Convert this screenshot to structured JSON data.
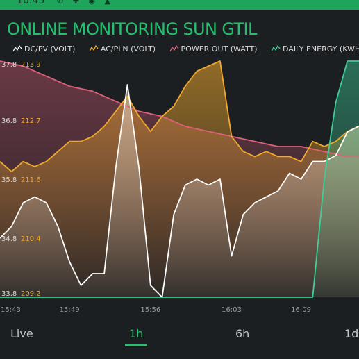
{
  "status_bar": {
    "time": "16:43",
    "icons_text": "✆ ✚ ◉ ▲"
  },
  "app_title": "ONLINE MONITORING SUN GTIL",
  "colors": {
    "accent": "#23c16e",
    "dc_pv": "#ffffff",
    "ac_pln": "#f0a92c",
    "power_out": "#e0607a",
    "daily_energy": "#3dcf9a",
    "tick_left": "#d8d8d8",
    "tick_right": "#f0a92c"
  },
  "legend": [
    {
      "name": "dc-pv",
      "label": "DC/PV (VOLT)",
      "color": "#ffffff"
    },
    {
      "name": "ac-pln",
      "label": "AC/PLN (VOLT)",
      "color": "#f0a92c"
    },
    {
      "name": "power-out",
      "label": "POWER OUT  (WATT)",
      "color": "#e0607a"
    },
    {
      "name": "daily-energy",
      "label": "DAILY ENERGY (KWH)",
      "color": "#3dcf9a"
    }
  ],
  "tabs": [
    {
      "name": "live",
      "label": "Live",
      "active": false
    },
    {
      "name": "1h",
      "label": "1h",
      "active": true
    },
    {
      "name": "6h",
      "label": "6h",
      "active": false
    },
    {
      "name": "1d",
      "label": "1d",
      "active": false
    }
  ],
  "chart_data": {
    "type": "line",
    "title": "",
    "xlabel": "",
    "ylabel": "",
    "x_ticks": [
      "15:43",
      "15:49",
      "15:56",
      "16:03",
      "16:09"
    ],
    "x_range": [
      "15:43",
      "16:14"
    ],
    "y_left_ticks": [
      "37.8",
      "36.8",
      "35.8",
      "34.8",
      "33.8"
    ],
    "y_left_range": [
      33.8,
      37.8
    ],
    "y_right_ticks": [
      "213.9",
      "212.7",
      "211.6",
      "210.4",
      "209.2"
    ],
    "y_right_range": [
      209.2,
      213.9
    ],
    "grid": false,
    "legend_position": "top",
    "series": [
      {
        "name": "DC/PV (VOLT)",
        "color": "#ffffff",
        "x": [
          "15:43",
          "15:44",
          "15:45",
          "15:46",
          "15:47",
          "15:48",
          "15:49",
          "15:50",
          "15:51",
          "15:52",
          "15:53",
          "15:54",
          "15:55",
          "15:56",
          "15:57",
          "15:58",
          "15:59",
          "16:00",
          "16:01",
          "16:02",
          "16:03",
          "16:04",
          "16:05",
          "16:06",
          "16:07",
          "16:08",
          "16:09",
          "16:10",
          "16:11",
          "16:12",
          "16:13",
          "16:14"
        ],
        "values": [
          34.8,
          35.0,
          35.4,
          35.5,
          35.4,
          35.0,
          34.4,
          34.0,
          34.2,
          34.2,
          36.0,
          37.4,
          36.0,
          34.0,
          33.8,
          35.2,
          35.7,
          35.8,
          35.7,
          35.8,
          34.5,
          35.2,
          35.4,
          35.5,
          35.6,
          35.9,
          35.8,
          36.1,
          36.1,
          36.2,
          36.6,
          36.7
        ]
      },
      {
        "name": "AC/PLN (VOLT)",
        "color": "#f0a92c",
        "x": [
          "15:43",
          "15:44",
          "15:45",
          "15:46",
          "15:47",
          "15:48",
          "15:49",
          "15:50",
          "15:51",
          "15:52",
          "15:53",
          "15:54",
          "15:55",
          "15:56",
          "15:57",
          "15:58",
          "15:59",
          "16:00",
          "16:01",
          "16:02",
          "16:03",
          "16:04",
          "16:05",
          "16:06",
          "16:07",
          "16:08",
          "16:09",
          "16:10",
          "16:11",
          "16:12",
          "16:13",
          "16:14"
        ],
        "values": [
          211.9,
          211.7,
          211.9,
          211.8,
          211.9,
          212.1,
          212.3,
          212.3,
          212.4,
          212.6,
          212.9,
          213.2,
          212.8,
          212.5,
          212.8,
          213.0,
          213.4,
          213.7,
          213.8,
          213.9,
          212.4,
          212.1,
          212.0,
          212.1,
          212.0,
          212.0,
          211.9,
          212.3,
          212.2,
          212.3,
          212.5,
          212.6
        ]
      },
      {
        "name": "POWER OUT  (WATT)",
        "color": "#e0607a",
        "x": [
          "15:43",
          "15:45",
          "15:47",
          "15:49",
          "15:51",
          "15:53",
          "15:55",
          "15:57",
          "15:59",
          "16:01",
          "16:03",
          "16:05",
          "16:07",
          "16:09",
          "16:11",
          "16:13",
          "16:14"
        ],
        "values": [
          213.9,
          213.8,
          213.6,
          213.4,
          213.3,
          213.1,
          212.9,
          212.8,
          212.6,
          212.5,
          212.4,
          212.3,
          212.2,
          212.2,
          212.1,
          212.0,
          212.0
        ]
      },
      {
        "name": "DAILY ENERGY (KWH)",
        "color": "#3dcf9a",
        "x": [
          "15:43",
          "16:09",
          "16:10",
          "16:11",
          "16:12",
          "16:13",
          "16:14"
        ],
        "values": [
          33.8,
          33.8,
          33.8,
          35.8,
          37.1,
          37.8,
          37.8
        ]
      }
    ]
  }
}
